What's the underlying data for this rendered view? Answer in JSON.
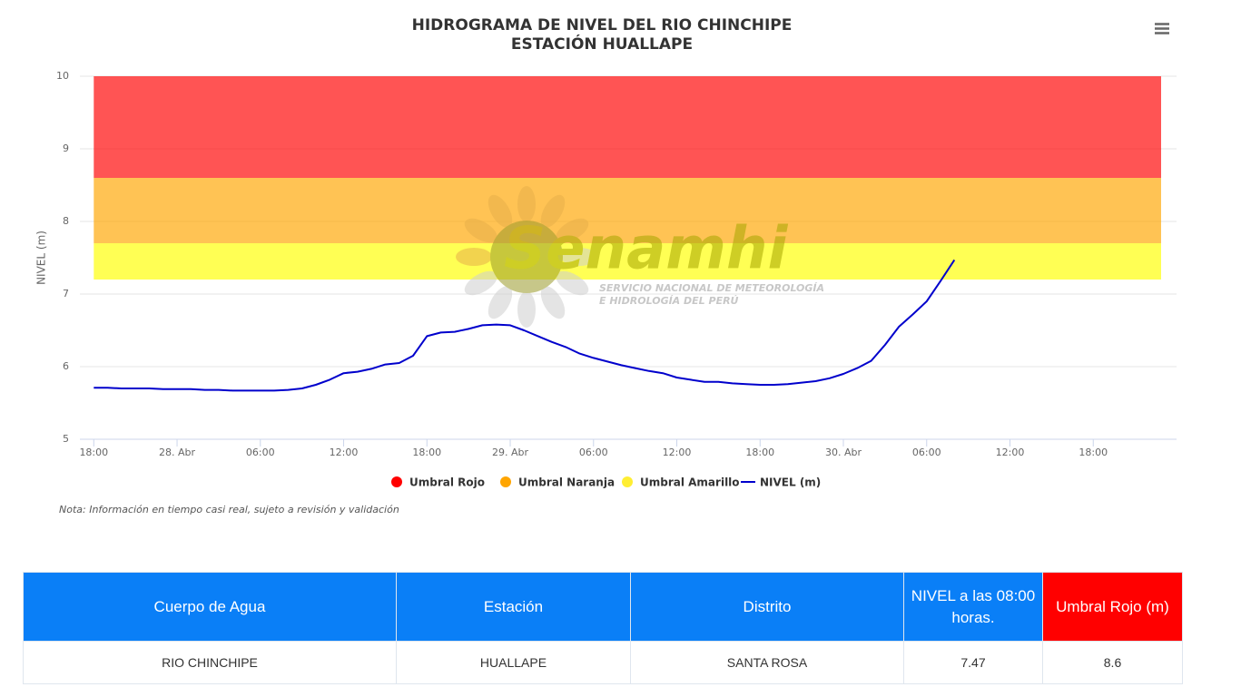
{
  "chart_data": {
    "type": "line",
    "title": "HIDROGRAMA DE NIVEL DEL RIO CHINCHIPE",
    "subtitle": "ESTACIÓN HUALLAPE",
    "y_label": "NIVEL (m)",
    "ylim": [
      5,
      10
    ],
    "yticks": [
      5,
      6,
      7,
      8,
      9,
      10
    ],
    "xlim": [
      -1,
      78
    ],
    "xticks": [
      {
        "value": 0,
        "label": "18:00"
      },
      {
        "value": 6,
        "label": "28. Abr"
      },
      {
        "value": 12,
        "label": "06:00"
      },
      {
        "value": 18,
        "label": "12:00"
      },
      {
        "value": 24,
        "label": "18:00"
      },
      {
        "value": 30,
        "label": "29. Abr"
      },
      {
        "value": 36,
        "label": "06:00"
      },
      {
        "value": 42,
        "label": "12:00"
      },
      {
        "value": 48,
        "label": "18:00"
      },
      {
        "value": 54,
        "label": "30. Abr"
      },
      {
        "value": 60,
        "label": "06:00"
      },
      {
        "value": 66,
        "label": "12:00"
      },
      {
        "value": 72,
        "label": "18:00"
      }
    ],
    "grid": true,
    "thresholds": [
      {
        "name": "Umbral Rojo",
        "color": "#ff0000",
        "value": 8.6
      },
      {
        "name": "Umbral Naranja",
        "color": "#ffa500",
        "value": 7.7
      },
      {
        "name": "Umbral Amarillo",
        "color": "#ffff00",
        "value": 7.2
      }
    ],
    "x": [
      0,
      1,
      2,
      3,
      4,
      5,
      6,
      7,
      8,
      9,
      10,
      11,
      12,
      13,
      14,
      15,
      16,
      17,
      18,
      19,
      20,
      21,
      22,
      23,
      24,
      25,
      26,
      27,
      28,
      29,
      30,
      31,
      32,
      33,
      34,
      35,
      36,
      37,
      38,
      39,
      40,
      41,
      42,
      43,
      44,
      45,
      46,
      47,
      48,
      49,
      50,
      51,
      52,
      53,
      54,
      55,
      56,
      57,
      58,
      59,
      60,
      61,
      62
    ],
    "series": [
      {
        "name": "NIVEL (m)",
        "color": "#0000cc",
        "values": [
          5.71,
          5.71,
          5.7,
          5.7,
          5.7,
          5.69,
          5.69,
          5.69,
          5.68,
          5.68,
          5.67,
          5.67,
          5.67,
          5.67,
          5.68,
          5.7,
          5.75,
          5.82,
          5.91,
          5.93,
          5.97,
          6.03,
          6.05,
          6.15,
          6.42,
          6.47,
          6.48,
          6.52,
          6.57,
          6.58,
          6.57,
          6.5,
          6.42,
          6.34,
          6.27,
          6.18,
          6.12,
          6.07,
          6.02,
          5.98,
          5.94,
          5.91,
          5.85,
          5.82,
          5.79,
          5.79,
          5.77,
          5.76,
          5.75,
          5.75,
          5.76,
          5.78,
          5.8,
          5.84,
          5.9,
          5.98,
          6.08,
          6.3,
          6.55,
          6.72,
          6.9,
          7.18,
          7.47
        ]
      }
    ]
  },
  "note": "Nota: Información en tiempo casi real, sujeto a revisión y validación",
  "watermark": {
    "name": "Senamhi",
    "line1": "SERVICIO NACIONAL DE METEOROLOGÍA",
    "line2": "E HIDROLOGÍA DEL PERÚ"
  },
  "table": {
    "header": [
      "Cuerpo de Agua",
      "Estación",
      "Distrito",
      "NIVEL a las 08:00 horas.",
      "Umbral Rojo (m)"
    ],
    "rows": [
      [
        "RIO CHINCHIPE",
        "HUALLAPE",
        "SANTA ROSA",
        7.47,
        8.6
      ]
    ]
  }
}
